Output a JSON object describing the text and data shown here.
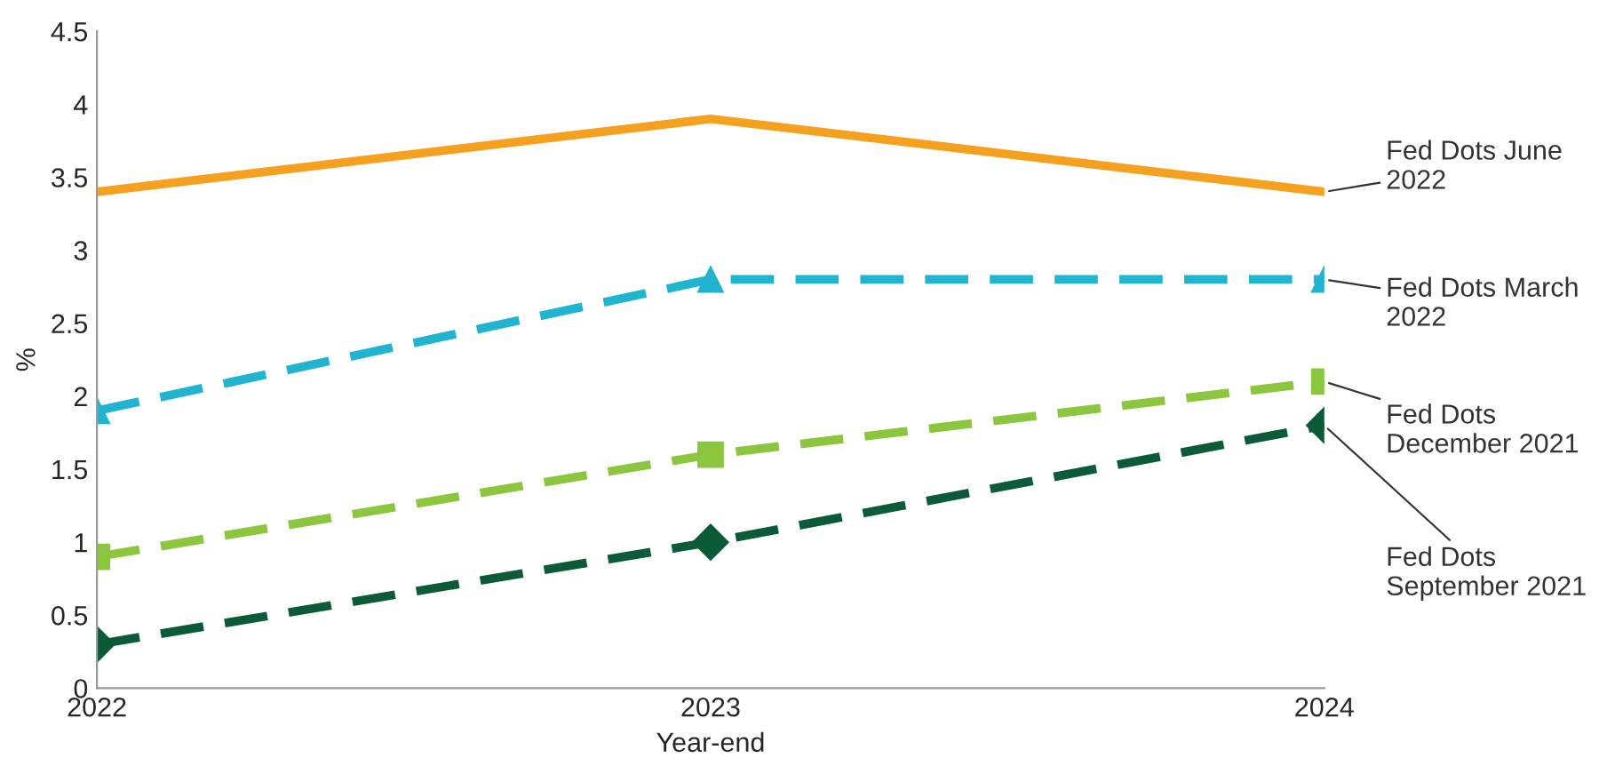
{
  "chart_data": {
    "type": "line",
    "xlabel": "Year-end",
    "ylabel": "%",
    "categories": [
      "2022",
      "2023",
      "2024"
    ],
    "ylim": [
      0,
      4.5
    ],
    "yticks": [
      0,
      0.5,
      1,
      1.5,
      2,
      2.5,
      3,
      3.5,
      4,
      4.5
    ],
    "grid": false,
    "legend": false,
    "series": [
      {
        "name": "Fed Dots June 2022",
        "color": "#f5a01e",
        "values": [
          3.4,
          3.9,
          3.4
        ],
        "marker": "none",
        "line_style": "solid"
      },
      {
        "name": "Fed Dots March 2022",
        "color": "#20b4d0",
        "values": [
          1.9,
          2.8,
          2.8
        ],
        "marker": "triangle",
        "line_style": "dashed"
      },
      {
        "name": "Fed Dots December 2021",
        "color": "#8cc63e",
        "values": [
          0.9,
          1.6,
          2.1
        ],
        "marker": "square",
        "line_style": "dashed"
      },
      {
        "name": "Fed Dots September 2021",
        "color": "#0b5a38",
        "values": [
          0.3,
          1.0,
          1.8
        ],
        "marker": "diamond",
        "line_style": "dashed"
      }
    ]
  }
}
